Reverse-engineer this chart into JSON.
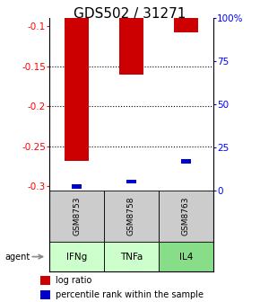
{
  "title": "GDS502 / 31271",
  "samples": [
    "GSM8753",
    "GSM8758",
    "GSM8763"
  ],
  "agents": [
    "IFNg",
    "TNFa",
    "IL4"
  ],
  "log_ratios": [
    -0.268,
    -0.16,
    -0.108
  ],
  "percentile_ranks": [
    2.0,
    5.0,
    17.0
  ],
  "ylim_left": [
    -0.305,
    -0.09
  ],
  "ylim_right": [
    0,
    100
  ],
  "yticks_left": [
    -0.3,
    -0.25,
    -0.2,
    -0.15,
    -0.1
  ],
  "yticks_right": [
    0,
    25,
    50,
    75,
    100
  ],
  "ytick_labels_left": [
    "-0.3",
    "-0.25",
    "-0.2",
    "-0.15",
    "-0.1"
  ],
  "ytick_labels_right": [
    "0",
    "25",
    "50",
    "75",
    "100%"
  ],
  "grid_lines": [
    -0.15,
    -0.2,
    -0.25
  ],
  "bar_color": "#cc0000",
  "percentile_color": "#0000cc",
  "sample_box_color": "#cccccc",
  "agent_colors": [
    "#ccffcc",
    "#ccffcc",
    "#88dd88"
  ],
  "title_fontsize": 11,
  "bar_width": 0.45,
  "percentile_bar_width": 0.18
}
